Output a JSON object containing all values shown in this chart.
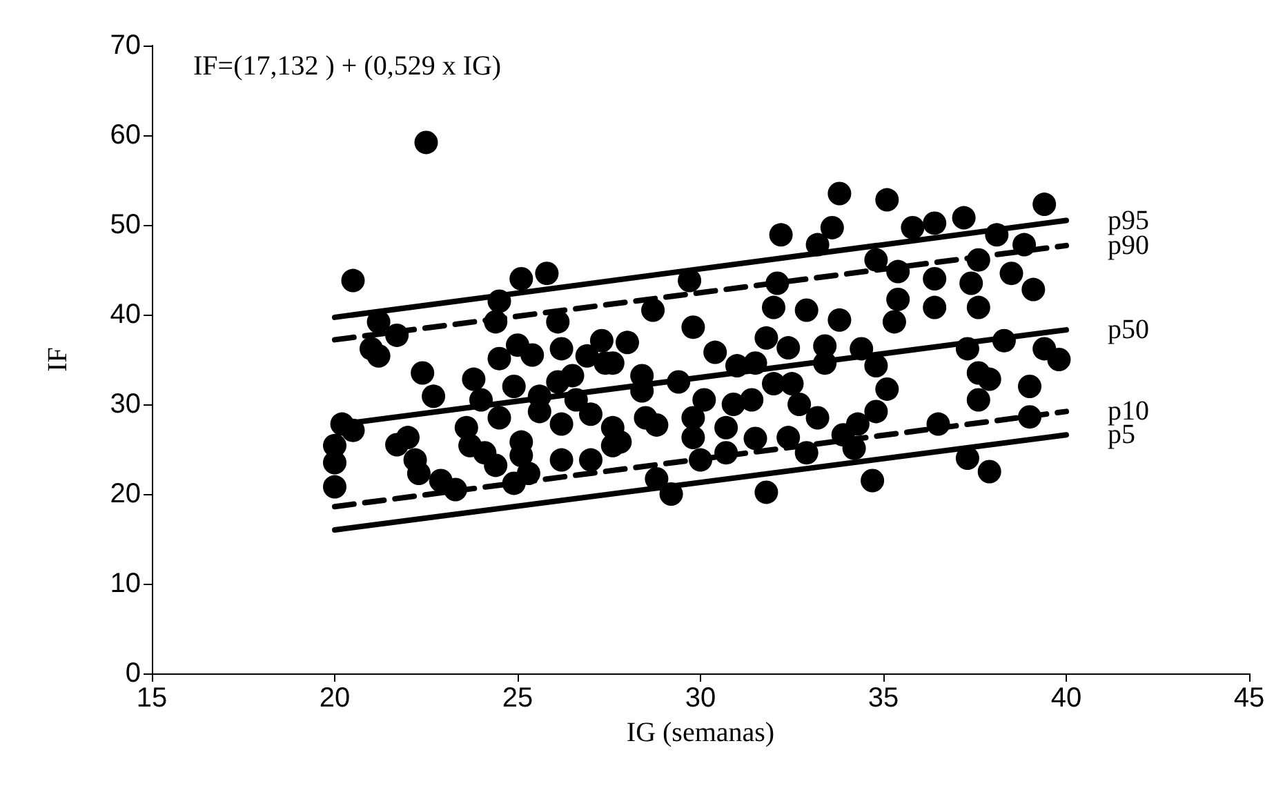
{
  "chart_data": {
    "type": "scatter",
    "xlabel": "IG (semanas)",
    "ylabel": "IF",
    "annotations": [
      "IF=(17,132 ) + (0,529 x IG)"
    ],
    "xlim": [
      15,
      45
    ],
    "xticks": [
      15,
      20,
      25,
      30,
      35,
      40,
      45
    ],
    "ylim": [
      0,
      70
    ],
    "yticks": [
      0,
      10,
      20,
      30,
      40,
      50,
      60,
      70
    ],
    "grid": false,
    "legend": false,
    "series": [
      {
        "marker": "circle",
        "color": "#000000",
        "x": [
          22.5,
          20.5,
          25.1,
          25.8,
          24.5,
          24.4,
          21.2,
          21.7,
          21,
          21.2,
          26.1,
          26.2,
          27.3,
          27.4,
          26.9,
          25,
          25.4,
          24.5,
          22.4,
          22.7,
          23.8,
          24,
          24.9,
          26.1,
          26.5,
          25.6,
          20.2,
          20.5,
          20,
          20,
          20,
          21.7,
          22,
          22.2,
          22.3,
          22.9,
          23.3,
          23.6,
          23.7,
          24.1,
          24.4,
          24.5,
          25.1,
          25.1,
          25.3,
          24.9,
          25.6,
          26.2,
          27,
          27.6,
          26.2,
          27,
          27.6,
          26.6,
          33.8,
          35.1,
          32.2,
          33.6,
          33.2,
          35.8,
          34.8,
          35.4,
          35.4,
          35.3,
          32.1,
          32,
          32.9,
          33.8,
          29.7,
          28.7,
          29.8,
          28,
          31.8,
          32.4,
          33.4,
          34.4,
          34.8,
          35.1,
          34.8,
          34.3,
          33.9,
          34.2,
          34.7,
          33.2,
          32.9,
          31.8,
          29.2,
          28.8,
          30,
          30.7,
          29.8,
          28.8,
          28.5,
          27.8,
          28.4,
          28.4,
          29.4,
          30.1,
          29.8,
          30.4,
          31,
          31.5,
          30.9,
          31.4,
          32,
          32.5,
          32.7,
          31.5,
          32.4,
          30.7,
          27.6,
          33.4,
          39.4,
          38.85,
          38.5,
          39.1,
          39,
          39,
          37.9,
          37.3,
          39.8,
          39.4,
          37.6,
          37.9,
          37.6,
          36.5,
          37.6,
          37.4,
          37.6,
          37.2,
          38.1,
          36.4,
          36.4,
          36.4,
          38.3,
          37.3
        ],
        "values": [
          59.2,
          43.8,
          44,
          44.6,
          41.5,
          39.2,
          39.2,
          37.7,
          36.2,
          35.4,
          39.2,
          36.2,
          37.1,
          34.6,
          35.4,
          36.6,
          35.5,
          35.1,
          33.5,
          30.9,
          32.8,
          30.5,
          32,
          32.5,
          33.2,
          30.9,
          27.8,
          27.1,
          25.4,
          23.5,
          20.8,
          25.5,
          26.3,
          23.8,
          22.3,
          21.5,
          20.5,
          27.4,
          25.4,
          24.6,
          23.2,
          28.5,
          25.8,
          24.3,
          22.3,
          21.2,
          29.2,
          27.8,
          28.9,
          27.4,
          23.8,
          23.8,
          25.4,
          30.5,
          53.5,
          52.8,
          48.9,
          49.7,
          47.8,
          49.7,
          46.1,
          44.8,
          41.7,
          39.2,
          43.5,
          40.8,
          40.5,
          39.4,
          43.8,
          40.5,
          38.6,
          36.9,
          37.4,
          36.3,
          36.5,
          36.2,
          34.3,
          31.7,
          29.2,
          27.8,
          26.6,
          25.1,
          21.5,
          28.5,
          24.6,
          20.2,
          20,
          21.7,
          23.8,
          24.6,
          26.3,
          27.7,
          28.5,
          25.8,
          31.5,
          33.2,
          32.5,
          30.5,
          28.5,
          35.8,
          34.3,
          34.6,
          30,
          30.5,
          32.3,
          32.3,
          30,
          26.2,
          26.3,
          27.4,
          34.6,
          34.6,
          52.3,
          47.8,
          44.6,
          42.8,
          32,
          28.6,
          22.5,
          24,
          35,
          36.2,
          30.5,
          32.8,
          33.5,
          27.8,
          40.8,
          43.5,
          46.1,
          50.8,
          48.9,
          50.2,
          40.8,
          44,
          37.1,
          36.2
        ]
      },
      {
        "type": "line",
        "name": "p95",
        "marker": "none",
        "color": "#000000",
        "line_style": "solid",
        "x": [
          20,
          40
        ],
        "values": [
          39.7,
          50.5
        ]
      },
      {
        "type": "line",
        "name": "p90",
        "marker": "none",
        "color": "#000000",
        "line_style": "dashed",
        "x": [
          20,
          40
        ],
        "values": [
          37.2,
          47.7
        ]
      },
      {
        "type": "line",
        "name": "p50",
        "marker": "none",
        "color": "#000000",
        "line_style": "solid",
        "x": [
          20,
          40
        ],
        "values": [
          27.7,
          38.3
        ]
      },
      {
        "type": "line",
        "name": "p10",
        "marker": "none",
        "color": "#000000",
        "line_style": "dashed",
        "x": [
          20,
          40
        ],
        "values": [
          18.6,
          29.2
        ]
      },
      {
        "type": "line",
        "name": "p5",
        "marker": "none",
        "color": "#000000",
        "line_style": "solid",
        "x": [
          20,
          40
        ],
        "values": [
          16,
          26.6
        ]
      }
    ]
  }
}
